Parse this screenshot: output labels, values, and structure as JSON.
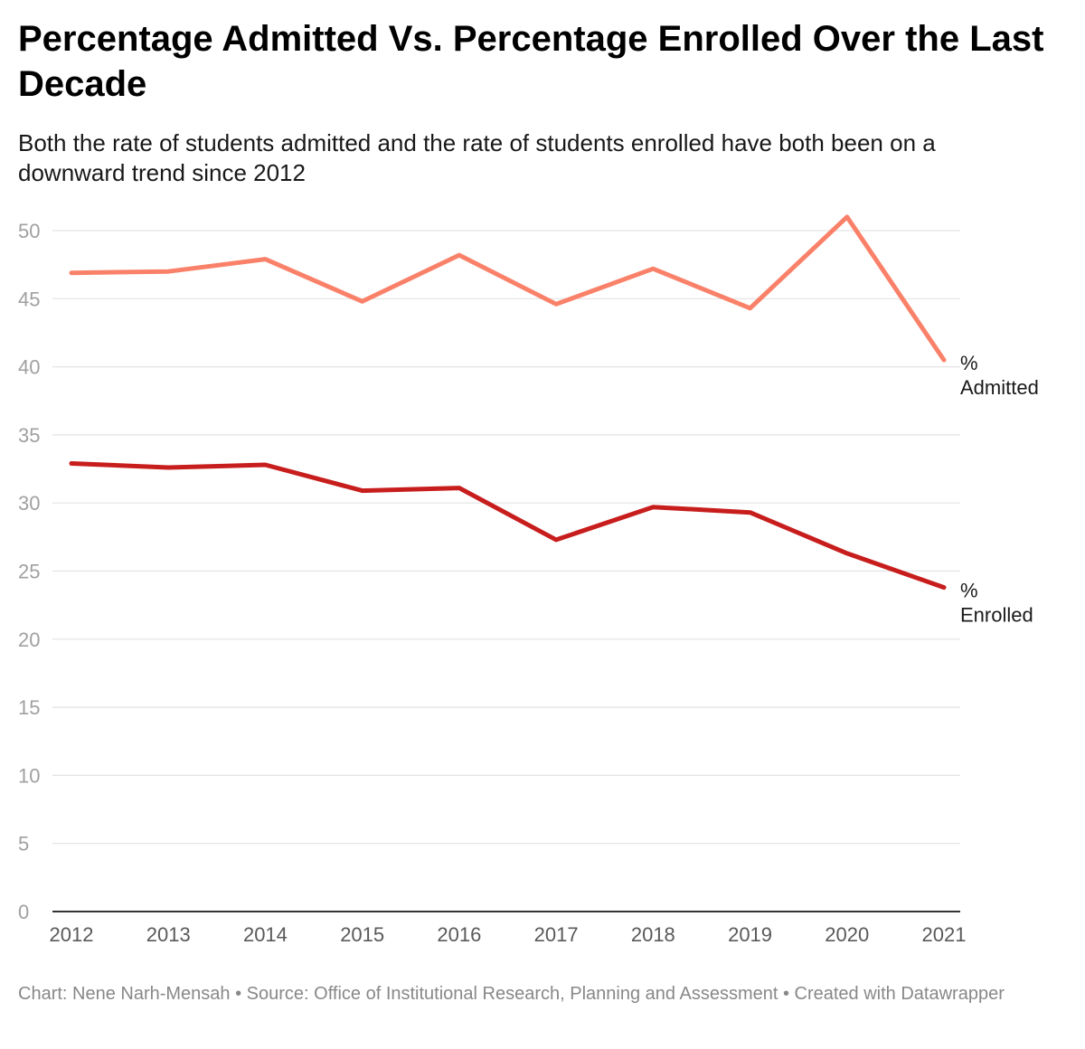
{
  "header": {
    "title": "Percentage Admitted Vs. Percentage Enrolled Over the Last Decade",
    "subtitle": "Both the rate of students admitted and the rate of students enrolled have both been on a downward trend since 2012"
  },
  "footer": {
    "credit": "Chart: Nene Narh-Mensah • Source: Office of Institutional Research, Planning and Assessment • Created with Datawrapper"
  },
  "chart_data": {
    "type": "line",
    "title": "Percentage Admitted Vs. Percentage Enrolled Over the Last Decade",
    "subtitle": "Both the rate of students admitted and the rate of students enrolled have both been on a downward trend since 2012",
    "xlabel": "",
    "ylabel": "",
    "x": [
      "2012",
      "2013",
      "2014",
      "2015",
      "2016",
      "2017",
      "2018",
      "2019",
      "2020",
      "2021"
    ],
    "ylim": [
      0,
      50
    ],
    "yticks": [
      0,
      5,
      10,
      15,
      20,
      25,
      30,
      35,
      40,
      45,
      50
    ],
    "grid": true,
    "legend": "direct labels at line ends (right)",
    "series": [
      {
        "name": "% Admitted",
        "label_lines": [
          "%",
          "Admitted"
        ],
        "color": "#fa8169",
        "values": [
          46.9,
          47.0,
          47.9,
          44.8,
          48.2,
          44.6,
          47.2,
          44.3,
          51.0,
          40.5
        ]
      },
      {
        "name": "% Enrolled",
        "label_lines": [
          "%",
          "Enrolled"
        ],
        "color": "#c71e1d",
        "values": [
          32.9,
          32.6,
          32.8,
          30.9,
          31.1,
          27.3,
          29.7,
          29.3,
          26.3,
          23.8
        ]
      }
    ]
  }
}
